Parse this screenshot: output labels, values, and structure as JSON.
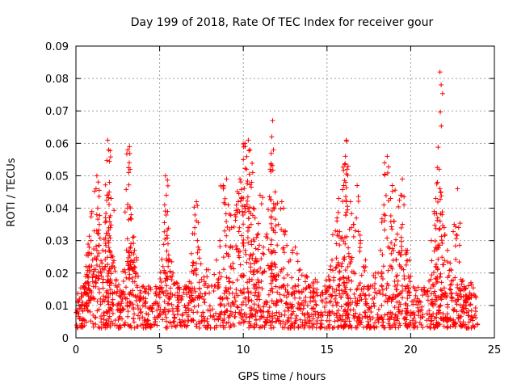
{
  "chart_data": {
    "type": "scatter",
    "title": "Day 199 of 2018, Rate Of TEC Index for receiver gour",
    "xlabel": "GPS time / hours",
    "ylabel": "ROTI / TECUs",
    "xlim": [
      0,
      25
    ],
    "ylim": [
      0,
      0.09
    ],
    "grid": true,
    "marker": "+",
    "marker_color": "#ff0000",
    "x_ticks": [
      0,
      5,
      10,
      15,
      20,
      25
    ],
    "x_tick_labels": [
      "0",
      "5",
      "10",
      "15",
      "20",
      "25"
    ],
    "y_ticks": [
      0,
      0.01,
      0.02,
      0.03,
      0.04,
      0.05,
      0.06,
      0.07,
      0.08,
      0.09
    ],
    "y_tick_labels": [
      "0",
      "0.01",
      "0.02",
      "0.03",
      "0.04",
      "0.05",
      "0.06",
      "0.07",
      "0.08",
      "0.09"
    ],
    "points": [
      [
        0.1,
        0.008
      ],
      [
        0.2,
        0.012
      ],
      [
        0.3,
        0.009
      ],
      [
        0.5,
        0.015
      ],
      [
        0.6,
        0.022
      ],
      [
        0.7,
        0.019
      ],
      [
        0.8,
        0.026
      ],
      [
        0.9,
        0.03
      ],
      [
        1.0,
        0.024
      ],
      [
        1.1,
        0.033
      ],
      [
        1.2,
        0.046
      ],
      [
        1.25,
        0.05
      ],
      [
        1.3,
        0.04
      ],
      [
        1.4,
        0.035
      ],
      [
        0.95,
        0.039
      ],
      [
        0.4,
        0.011
      ],
      [
        0.65,
        0.014
      ],
      [
        1.5,
        0.02
      ],
      [
        1.6,
        0.027
      ],
      [
        1.8,
        0.036
      ],
      [
        1.85,
        0.044
      ],
      [
        1.9,
        0.061
      ],
      [
        1.95,
        0.058
      ],
      [
        2.0,
        0.048
      ],
      [
        2.05,
        0.034
      ],
      [
        2.1,
        0.043
      ],
      [
        2.2,
        0.025
      ],
      [
        2.4,
        0.018
      ],
      [
        2.6,
        0.013
      ],
      [
        2.9,
        0.021
      ],
      [
        3.1,
        0.058
      ],
      [
        3.15,
        0.051
      ],
      [
        3.2,
        0.059
      ],
      [
        3.25,
        0.04
      ],
      [
        3.3,
        0.038
      ],
      [
        3.4,
        0.031
      ],
      [
        3.5,
        0.027
      ],
      [
        3.6,
        0.02
      ],
      [
        3.8,
        0.012
      ],
      [
        4.0,
        0.01
      ],
      [
        4.2,
        0.015
      ],
      [
        4.5,
        0.009
      ],
      [
        4.8,
        0.013
      ],
      [
        5.0,
        0.014
      ],
      [
        5.2,
        0.022
      ],
      [
        5.3,
        0.041
      ],
      [
        5.35,
        0.05
      ],
      [
        5.4,
        0.044
      ],
      [
        5.5,
        0.029
      ],
      [
        5.6,
        0.024
      ],
      [
        5.8,
        0.02
      ],
      [
        6.0,
        0.017
      ],
      [
        6.3,
        0.012
      ],
      [
        6.6,
        0.015
      ],
      [
        6.9,
        0.026
      ],
      [
        7.1,
        0.034
      ],
      [
        7.2,
        0.042
      ],
      [
        7.3,
        0.028
      ],
      [
        7.5,
        0.018
      ],
      [
        7.8,
        0.021
      ],
      [
        8.1,
        0.016
      ],
      [
        8.4,
        0.024
      ],
      [
        8.6,
        0.03
      ],
      [
        8.8,
        0.047
      ],
      [
        9.0,
        0.049
      ],
      [
        9.1,
        0.041
      ],
      [
        9.3,
        0.034
      ],
      [
        9.5,
        0.038
      ],
      [
        9.7,
        0.042
      ],
      [
        9.8,
        0.049
      ],
      [
        9.9,
        0.043
      ],
      [
        10.0,
        0.055
      ],
      [
        10.1,
        0.06
      ],
      [
        10.2,
        0.052
      ],
      [
        10.3,
        0.061
      ],
      [
        10.4,
        0.058
      ],
      [
        10.5,
        0.048
      ],
      [
        10.6,
        0.04
      ],
      [
        10.7,
        0.037
      ],
      [
        10.8,
        0.031
      ],
      [
        11.0,
        0.044
      ],
      [
        11.2,
        0.028
      ],
      [
        11.4,
        0.032
      ],
      [
        11.6,
        0.052
      ],
      [
        11.7,
        0.062
      ],
      [
        11.75,
        0.067
      ],
      [
        11.8,
        0.058
      ],
      [
        11.9,
        0.045
      ],
      [
        12.1,
        0.035
      ],
      [
        12.3,
        0.042
      ],
      [
        12.5,
        0.033
      ],
      [
        12.8,
        0.024
      ],
      [
        13.1,
        0.028
      ],
      [
        13.4,
        0.021
      ],
      [
        13.7,
        0.019
      ],
      [
        14.0,
        0.016
      ],
      [
        14.3,
        0.018
      ],
      [
        14.6,
        0.013
      ],
      [
        14.9,
        0.014
      ],
      [
        15.1,
        0.019
      ],
      [
        15.3,
        0.024
      ],
      [
        15.5,
        0.033
      ],
      [
        15.6,
        0.037
      ],
      [
        15.7,
        0.043
      ],
      [
        15.9,
        0.031
      ],
      [
        16.0,
        0.047
      ],
      [
        16.1,
        0.056
      ],
      [
        16.15,
        0.061
      ],
      [
        16.2,
        0.052
      ],
      [
        16.4,
        0.042
      ],
      [
        16.6,
        0.035
      ],
      [
        16.8,
        0.047
      ],
      [
        17.0,
        0.03
      ],
      [
        17.3,
        0.024
      ],
      [
        17.6,
        0.016
      ],
      [
        17.9,
        0.02
      ],
      [
        18.2,
        0.027
      ],
      [
        18.4,
        0.041
      ],
      [
        18.6,
        0.056
      ],
      [
        18.8,
        0.043
      ],
      [
        18.9,
        0.047
      ],
      [
        19.0,
        0.036
      ],
      [
        19.2,
        0.032
      ],
      [
        19.4,
        0.044
      ],
      [
        19.5,
        0.049
      ],
      [
        19.6,
        0.041
      ],
      [
        19.8,
        0.027
      ],
      [
        20.0,
        0.019
      ],
      [
        20.3,
        0.013
      ],
      [
        20.6,
        0.011
      ],
      [
        20.9,
        0.014
      ],
      [
        21.2,
        0.018
      ],
      [
        21.4,
        0.039
      ],
      [
        21.5,
        0.043
      ],
      [
        21.6,
        0.048
      ],
      [
        21.7,
        0.052
      ],
      [
        21.75,
        0.082
      ],
      [
        21.8,
        0.045
      ],
      [
        22.0,
        0.034
      ],
      [
        22.2,
        0.027
      ],
      [
        22.4,
        0.021
      ],
      [
        22.6,
        0.035
      ],
      [
        22.8,
        0.046
      ],
      [
        23.0,
        0.018
      ],
      [
        23.3,
        0.011
      ],
      [
        23.6,
        0.017
      ],
      [
        23.8,
        0.013
      ]
    ],
    "baseline_band": {
      "x_range": [
        0,
        24
      ],
      "y_low": 0.003,
      "y_high": 0.016
    }
  }
}
